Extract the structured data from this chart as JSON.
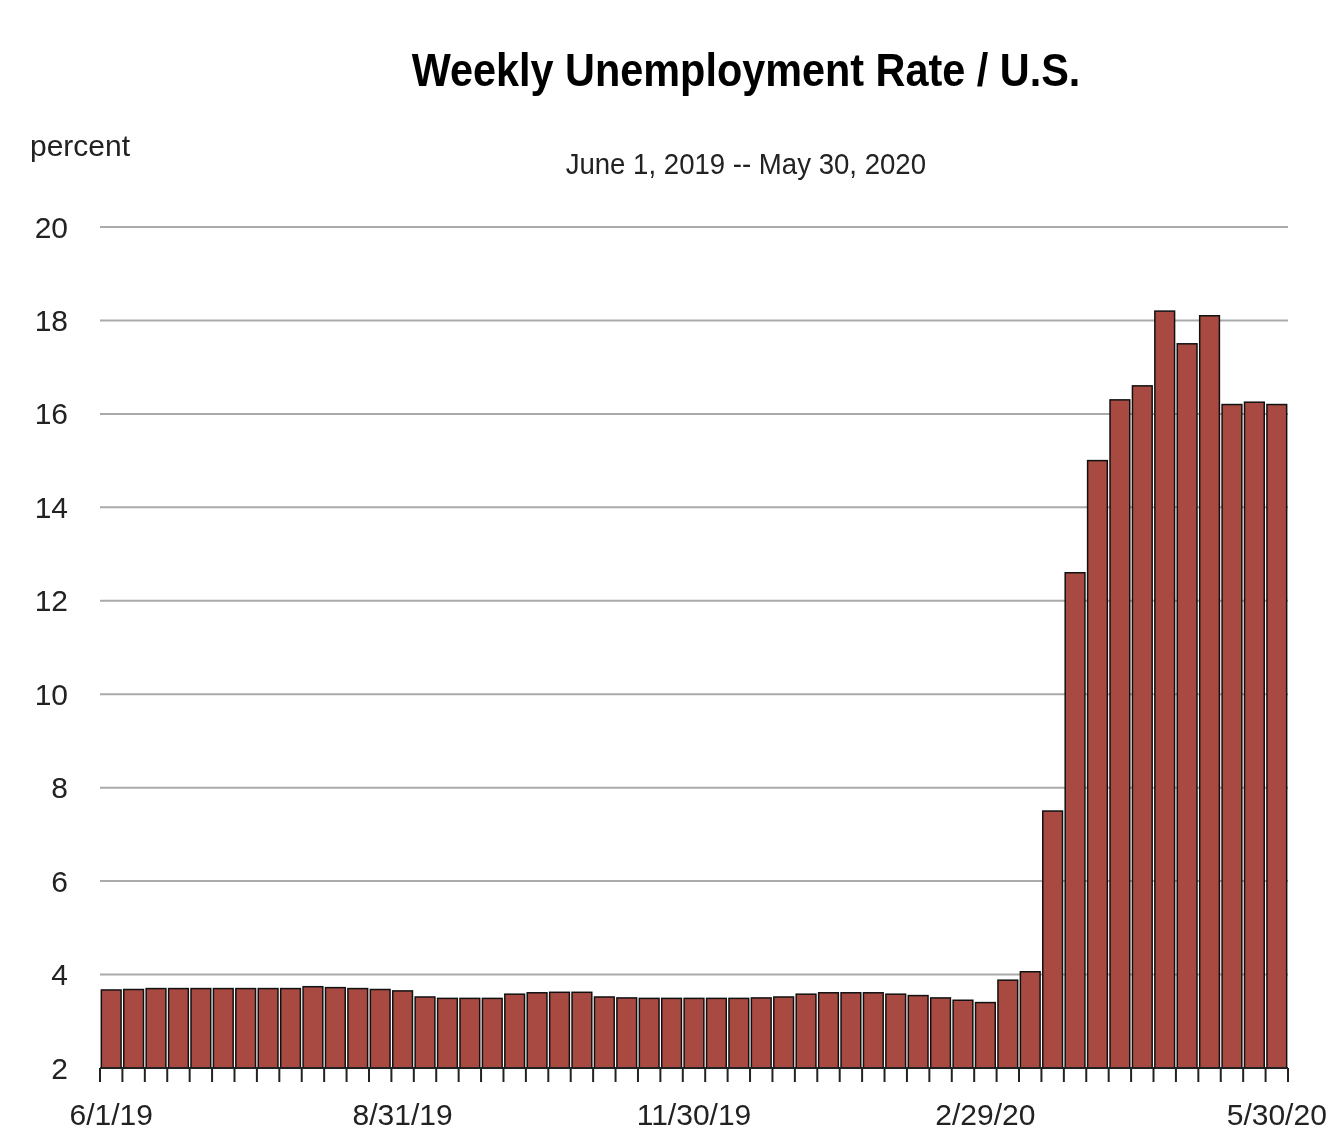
{
  "chart_data": {
    "type": "bar",
    "title": "Weekly Unemployment Rate / U.S.",
    "subtitle": "June 1, 2019 -- May 30, 2020",
    "ylabel": "percent",
    "categories": [
      "6/1/19",
      null,
      null,
      null,
      null,
      null,
      null,
      null,
      null,
      null,
      null,
      null,
      null,
      "8/31/19",
      null,
      null,
      null,
      null,
      null,
      null,
      null,
      null,
      null,
      null,
      null,
      null,
      "11/30/19",
      null,
      null,
      null,
      null,
      null,
      null,
      null,
      null,
      null,
      null,
      null,
      null,
      "2/29/20",
      null,
      null,
      null,
      null,
      null,
      null,
      null,
      null,
      null,
      null,
      null,
      null,
      "5/30/20"
    ],
    "values": [
      3.67,
      3.68,
      3.7,
      3.7,
      3.7,
      3.7,
      3.7,
      3.7,
      3.7,
      3.74,
      3.72,
      3.7,
      3.68,
      3.65,
      3.52,
      3.49,
      3.49,
      3.49,
      3.58,
      3.61,
      3.62,
      3.62,
      3.52,
      3.5,
      3.49,
      3.49,
      3.49,
      3.49,
      3.49,
      3.5,
      3.52,
      3.58,
      3.61,
      3.61,
      3.61,
      3.58,
      3.55,
      3.5,
      3.45,
      3.4,
      3.88,
      4.06,
      7.5,
      12.6,
      15.0,
      16.3,
      16.6,
      18.2,
      17.5,
      18.1,
      16.2,
      16.25,
      16.2
    ],
    "color": "#a84a42",
    "ylim": [
      2,
      20
    ],
    "yticks": [
      2,
      4,
      6,
      8,
      10,
      12,
      14,
      16,
      18,
      20
    ],
    "grid": "y"
  }
}
